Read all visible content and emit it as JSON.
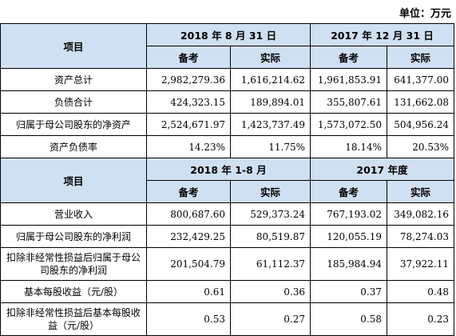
{
  "unit": "单位：万元",
  "section1": {
    "item_header": "项目",
    "period_a": "2018 年 8 月 31 日",
    "period_b": "2017 年 12 月 31 日",
    "sub_headers": [
      "备考",
      "实际",
      "备考",
      "实际"
    ],
    "rows": [
      {
        "label": "资产总计",
        "values": [
          "2,982,279.36",
          "1,616,214.62",
          "1,961,853.91",
          "641,377.00"
        ]
      },
      {
        "label": "负债合计",
        "values": [
          "424,323.15",
          "189,894.01",
          "355,807.61",
          "131,662.08"
        ]
      },
      {
        "label": "归属于母公司股东的净资产",
        "values": [
          "2,524,671.97",
          "1,423,737.49",
          "1,573,072.50",
          "504,956.24"
        ]
      },
      {
        "label": "资产负债率",
        "values": [
          "14.23%",
          "11.75%",
          "18.14%",
          "20.53%"
        ]
      }
    ]
  },
  "section2": {
    "item_header": "项目",
    "period_a": "2018 年 1-8 月",
    "period_b": "2017 年度",
    "sub_headers": [
      "备考",
      "实际",
      "备考",
      "实际"
    ],
    "rows": [
      {
        "label": "营业收入",
        "values": [
          "800,687.60",
          "529,373.24",
          "767,193.02",
          "349,082.16"
        ]
      },
      {
        "label": "归属于母公司股东的净利润",
        "values": [
          "232,429.25",
          "80,519.87",
          "120,055.19",
          "78,274.03"
        ]
      },
      {
        "label": "扣除非经常性损益后归属于母公司股东的净利润",
        "values": [
          "201,504.79",
          "61,112.37",
          "185,984.94",
          "37,922.11"
        ]
      },
      {
        "label": "基本每股收益（元/股）",
        "values": [
          "0.61",
          "0.36",
          "0.37",
          "0.48"
        ]
      },
      {
        "label": "扣除非经常性损益后基本每股收益（元/股）",
        "values": [
          "0.53",
          "0.27",
          "0.58",
          "0.23"
        ]
      }
    ]
  }
}
